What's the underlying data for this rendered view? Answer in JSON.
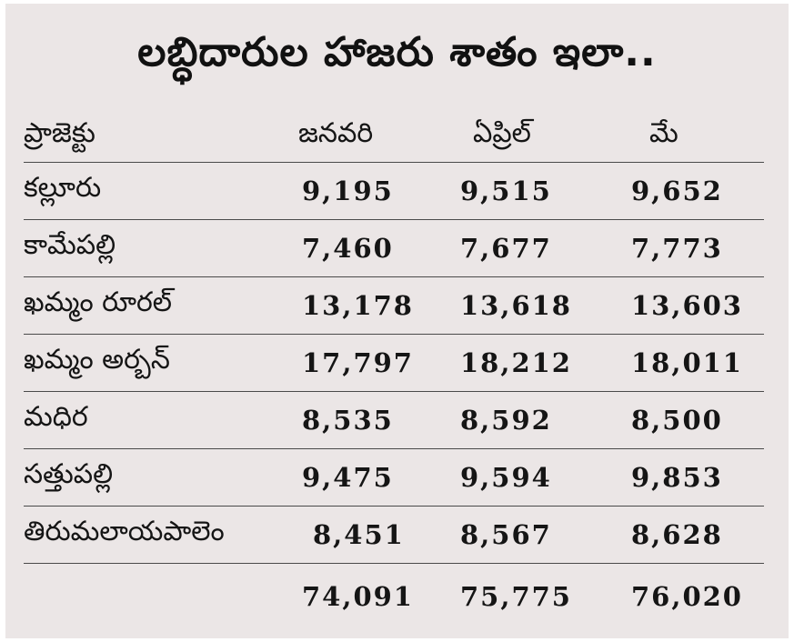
{
  "title": "లబ్ధిదారుల హాజరు శాతం ఇలా..",
  "headers": {
    "project": "ప్రాజెక్టు",
    "january": "జనవరి",
    "april": "ఏప్రిల్",
    "may": "మే"
  },
  "rows": [
    {
      "name": "కల్లూరు",
      "january": "9,195",
      "april": "9,515",
      "may": "9,652"
    },
    {
      "name": "కామేపల్లి",
      "january": "7,460",
      "april": "7,677",
      "may": "7,773"
    },
    {
      "name": "ఖమ్మం రూరల్",
      "january": "13,178",
      "april": "13,618",
      "may": "13,603"
    },
    {
      "name": "ఖమ్మం అర్బన్",
      "january": "17,797",
      "april": "18,212",
      "may": "18,011"
    },
    {
      "name": "మధిర",
      "january": "8,535",
      "april": "8,592",
      "may": "8,500"
    },
    {
      "name": "సత్తుపల్లి",
      "january": "9,475",
      "april": "9,594",
      "may": "9,853"
    },
    {
      "name": "తిరుమలాయపాలెం",
      "january": "8,451",
      "april": "8,567",
      "may": "8,628"
    }
  ],
  "totals": {
    "january": "74,091",
    "april": "75,775",
    "may": "76,020"
  }
}
